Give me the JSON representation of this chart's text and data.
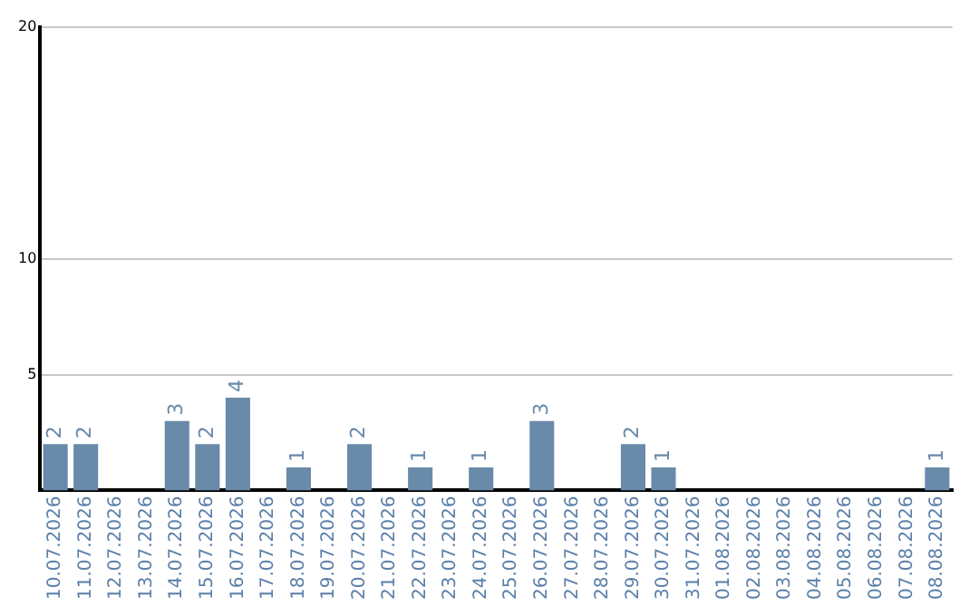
{
  "chart_data": {
    "type": "bar",
    "categories": [
      "10.07.2026",
      "11.07.2026",
      "12.07.2026",
      "13.07.2026",
      "14.07.2026",
      "15.07.2026",
      "16.07.2026",
      "17.07.2026",
      "18.07.2026",
      "19.07.2026",
      "20.07.2026",
      "21.07.2026",
      "22.07.2026",
      "23.07.2026",
      "24.07.2026",
      "25.07.2026",
      "26.07.2026",
      "27.07.2026",
      "28.07.2026",
      "29.07.2026",
      "30.07.2026",
      "31.07.2026",
      "01.08.2026",
      "02.08.2026",
      "03.08.2026",
      "04.08.2026",
      "05.08.2026",
      "06.08.2026",
      "07.08.2026",
      "08.08.2026"
    ],
    "values": [
      2,
      2,
      null,
      null,
      3,
      2,
      4,
      null,
      1,
      null,
      2,
      null,
      1,
      null,
      1,
      null,
      3,
      null,
      null,
      2,
      1,
      null,
      null,
      null,
      null,
      null,
      null,
      null,
      null,
      1
    ],
    "color": "#6a8aaa",
    "ylim": [
      0,
      20
    ],
    "yticks": [
      5,
      10,
      20
    ],
    "grid": "y",
    "data_labels": true,
    "legend": false
  }
}
